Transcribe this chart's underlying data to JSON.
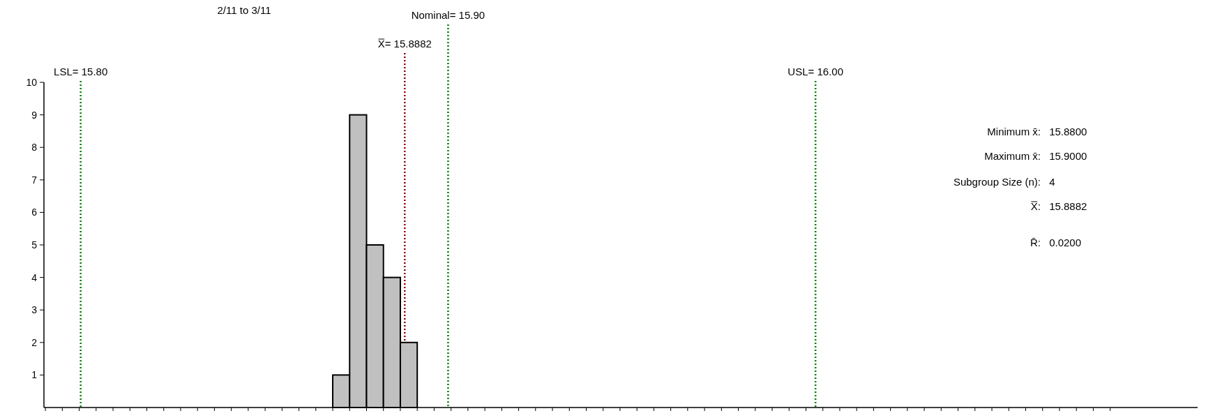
{
  "chart_data": {
    "type": "histogram",
    "title": "2/11 to 3/11",
    "bins": [
      15.8686,
      15.8732,
      15.8778,
      15.8824,
      15.887,
      15.8916
    ],
    "values": [
      1,
      9,
      5,
      4,
      2
    ],
    "color": "#c0c0c0",
    "xlim": [
      15.79,
      16.104
    ],
    "xticks": [
      {
        "value": 15.7904,
        "label": null
      },
      {
        "value": 15.795,
        "label": null
      },
      {
        "value": 15.7996,
        "label": null
      },
      {
        "value": 15.8042,
        "label": null
      },
      {
        "value": 15.8088,
        "label": null
      },
      {
        "value": 15.8134,
        "label": null
      },
      {
        "value": 15.818,
        "label": null
      },
      {
        "value": 15.8226,
        "label": null
      },
      {
        "value": 15.8272,
        "label": null
      },
      {
        "value": 15.8318,
        "label": null
      },
      {
        "value": 15.8364,
        "label": null
      },
      {
        "value": 15.841,
        "label": null
      },
      {
        "value": 15.8456,
        "label": null
      },
      {
        "value": 15.8502,
        "label": null
      },
      {
        "value": 15.8548,
        "label": null
      },
      {
        "value": 15.8594,
        "label": null
      },
      {
        "value": 15.864,
        "label": null
      },
      {
        "value": 15.8686,
        "label": null
      },
      {
        "value": 15.8732,
        "label": null
      },
      {
        "value": 15.8778,
        "label": null
      },
      {
        "value": 15.8824,
        "label": null
      },
      {
        "value": 15.887,
        "label": null
      },
      {
        "value": 15.8916,
        "label": null
      },
      {
        "value": 15.8962,
        "label": null
      },
      {
        "value": 15.9008,
        "label": null
      },
      {
        "value": 15.9054,
        "label": null
      },
      {
        "value": 15.91,
        "label": null
      },
      {
        "value": 15.9146,
        "label": null
      },
      {
        "value": 15.9192,
        "label": null
      },
      {
        "value": 15.9238,
        "label": null
      },
      {
        "value": 15.9284,
        "label": null
      },
      {
        "value": 15.933,
        "label": null
      },
      {
        "value": 15.9376,
        "label": null
      },
      {
        "value": 15.9422,
        "label": null
      },
      {
        "value": 15.9468,
        "label": null
      },
      {
        "value": 15.9514,
        "label": null
      },
      {
        "value": 15.956,
        "label": null
      },
      {
        "value": 15.9606,
        "label": null
      },
      {
        "value": 15.9652,
        "label": null
      },
      {
        "value": 15.9698,
        "label": null
      },
      {
        "value": 15.9744,
        "label": null
      },
      {
        "value": 15.979,
        "label": null
      },
      {
        "value": 15.9836,
        "label": null
      },
      {
        "value": 15.9882,
        "label": null
      },
      {
        "value": 15.9928,
        "label": null
      },
      {
        "value": 15.9974,
        "label": null
      },
      {
        "value": 16.002,
        "label": null
      },
      {
        "value": 16.0066,
        "label": null
      },
      {
        "value": 16.0112,
        "label": null
      },
      {
        "value": 16.0158,
        "label": null
      },
      {
        "value": 16.0204,
        "label": null
      },
      {
        "value": 16.025,
        "label": null
      },
      {
        "value": 16.0296,
        "label": null
      },
      {
        "value": 16.0342,
        "label": null
      },
      {
        "value": 16.0388,
        "label": null
      },
      {
        "value": 16.0434,
        "label": null
      },
      {
        "value": 16.048,
        "label": null
      },
      {
        "value": 16.0526,
        "label": null
      },
      {
        "value": 16.0572,
        "label": null
      },
      {
        "value": 16.0618,
        "label": null
      },
      {
        "value": 16.0664,
        "label": null
      },
      {
        "value": 16.071,
        "label": null
      },
      {
        "value": 16.0756,
        "label": null
      },
      {
        "value": 16.0802,
        "label": null
      }
    ],
    "ylim": [
      0,
      10
    ],
    "yticks": [
      1,
      2,
      3,
      4,
      5,
      6,
      7,
      8,
      9,
      10
    ],
    "tick_labels": "y",
    "grid": false,
    "ref_lines": [
      {
        "axis": "x",
        "value": 15.8,
        "label": "LSL= 15.80",
        "color": "#008000",
        "line_style": "dotted"
      },
      {
        "axis": "x",
        "value": 15.9,
        "label": "Nominal= 15.90",
        "color": "#008000",
        "line_style": "dotted"
      },
      {
        "axis": "x",
        "value": 15.8882,
        "label": "X̿= 15.8882",
        "color": "#8b0000",
        "line_style": "dotted"
      },
      {
        "axis": "x",
        "value": 16.0,
        "label": "USL= 16.00",
        "color": "#008000",
        "line_style": "dotted"
      }
    ],
    "annotations": [
      "Minimum x̄: 15.8800",
      "Maximum x̄: 15.9000",
      "Subgroup Size (n): 4",
      "X̿: 15.8882",
      "R̄: 0.0200"
    ]
  }
}
